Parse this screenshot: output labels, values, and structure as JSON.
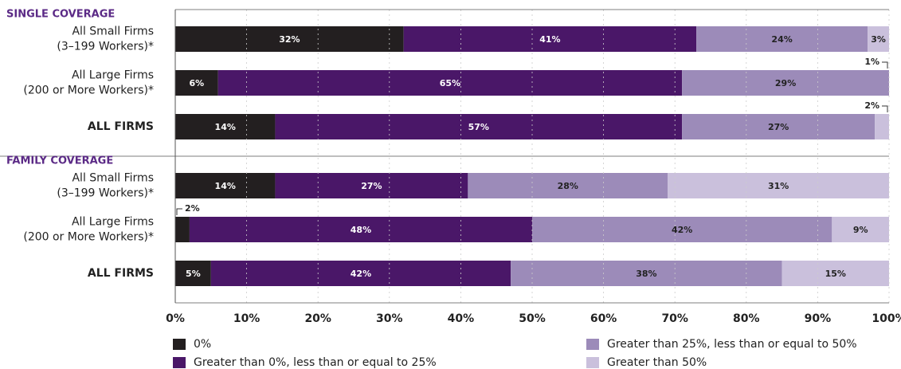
{
  "chart_data": {
    "type": "stacked-bar-horizontal",
    "groups": [
      "SINGLE COVERAGE",
      "FAMILY COVERAGE"
    ],
    "categories": [
      [
        "All Small Firms",
        "(3–199 Workers)*"
      ],
      [
        "All Large Firms",
        "(200 or More Workers)*"
      ],
      [
        "ALL FIRMS"
      ],
      [
        "All Small Firms",
        "(3–199 Workers)*"
      ],
      [
        "All Large Firms",
        "(200 or More Workers)*"
      ],
      [
        "ALL FIRMS"
      ]
    ],
    "series": [
      {
        "name": "0%",
        "color": "#231f20",
        "values": [
          32,
          6,
          14,
          14,
          2,
          5
        ],
        "value_labels": [
          "32%",
          "6%",
          "14%",
          "14%",
          "2%",
          "5%"
        ]
      },
      {
        "name": "Greater than 0%, less than or equal to 25%",
        "color": "#4a1768",
        "values": [
          41,
          65,
          57,
          27,
          48,
          42
        ],
        "value_labels": [
          "41%",
          "65%",
          "57%",
          "27%",
          "48%",
          "42%"
        ]
      },
      {
        "name": "Greater than 25%, less than or equal to 50%",
        "color": "#9c8bb9",
        "values": [
          24,
          29,
          27,
          28,
          42,
          38
        ],
        "value_labels": [
          "24%",
          "29%",
          "27%",
          "28%",
          "42%",
          "38%"
        ]
      },
      {
        "name": "Greater than 50%",
        "color": "#cac0dc",
        "values": [
          3,
          1,
          2,
          31,
          9,
          15
        ],
        "value_labels": [
          "3%",
          "1%",
          "2%",
          "31%",
          "9%",
          "15%"
        ]
      }
    ],
    "xlim": [
      0,
      100
    ],
    "xticks": [
      {
        "value": 0,
        "label": "0%"
      },
      {
        "value": 10,
        "label": "10%"
      },
      {
        "value": 20,
        "label": "20%"
      },
      {
        "value": 30,
        "label": "30%"
      },
      {
        "value": 40,
        "label": "40%"
      },
      {
        "value": 50,
        "label": "50%"
      },
      {
        "value": 60,
        "label": "60%"
      },
      {
        "value": 70,
        "label": "70%"
      },
      {
        "value": 80,
        "label": "80%"
      },
      {
        "value": 90,
        "label": "90%"
      },
      {
        "value": 100,
        "label": "100%"
      }
    ],
    "grid": true
  }
}
